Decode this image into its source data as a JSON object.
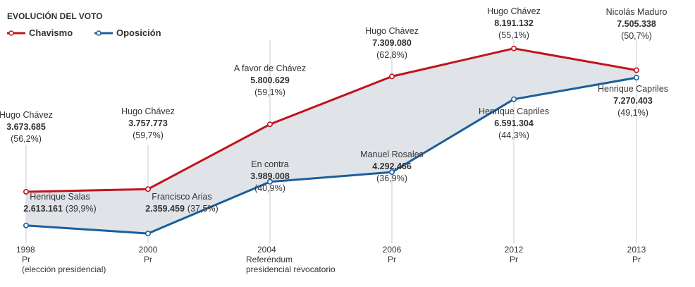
{
  "chart_data": {
    "type": "line",
    "title": "EVOLUCIÓN DEL VOTO",
    "legend_placement": "top-left",
    "colors": {
      "chavismo": "#c0141c",
      "oposicion": "#1a5f9c",
      "band": "#e0e4e9",
      "grid": "#c8c8c8"
    },
    "categories": [
      {
        "year": "1998",
        "sub": [
          "Pr",
          "(elección presidencial)"
        ]
      },
      {
        "year": "2000",
        "sub": [
          "Pr"
        ]
      },
      {
        "year": "2004",
        "sub": [
          "Referéndum",
          "presidencial revocatorio"
        ]
      },
      {
        "year": "2006",
        "sub": [
          "Pr"
        ]
      },
      {
        "year": "2012",
        "sub": [
          "Pr"
        ]
      },
      {
        "year": "2013",
        "sub": [
          "Pr"
        ]
      }
    ],
    "series": [
      {
        "name": "Chavismo",
        "values": [
          3673685,
          3757773,
          5800629,
          7309080,
          8191132,
          7505338
        ],
        "labels": [
          {
            "who": "Hugo Chávez",
            "votes": "3.673.685",
            "pct": "(56,2%)"
          },
          {
            "who": "Hugo Chávez",
            "votes": "3.757.773",
            "pct": "(59,7%)"
          },
          {
            "who": "A favor de Chávez",
            "votes": "5.800.629",
            "pct": "(59,1%)"
          },
          {
            "who": "Hugo Chávez",
            "votes": "7.309.080",
            "pct": "(62,8%)"
          },
          {
            "who": "Hugo Chávez",
            "votes": "8.191.132",
            "pct": "(55,1%)"
          },
          {
            "who": "Nicolás Maduro",
            "votes": "7.505.338",
            "pct": "(50,7%)"
          }
        ]
      },
      {
        "name": "Oposición",
        "values": [
          2613161,
          2359459,
          3989008,
          4292466,
          6591304,
          7270403
        ],
        "labels": [
          {
            "who": "Henrique Salas",
            "votes": "2.613.161",
            "pct": "(39,9%)"
          },
          {
            "who": "Francisco Arias",
            "votes": "2.359.459",
            "pct": "(37,5%)"
          },
          {
            "who": "En contra",
            "votes": "3.989.008",
            "pct": "(40,9%)"
          },
          {
            "who": "Manuel Rosales",
            "votes": "4.292.466",
            "pct": "(36,9%)"
          },
          {
            "who": "Henrique Capriles",
            "votes": "6.591.304",
            "pct": "(44,3%)"
          },
          {
            "who": "Henrique Capriles",
            "votes": "7.270.403",
            "pct": "(49,1%)"
          }
        ]
      }
    ]
  }
}
